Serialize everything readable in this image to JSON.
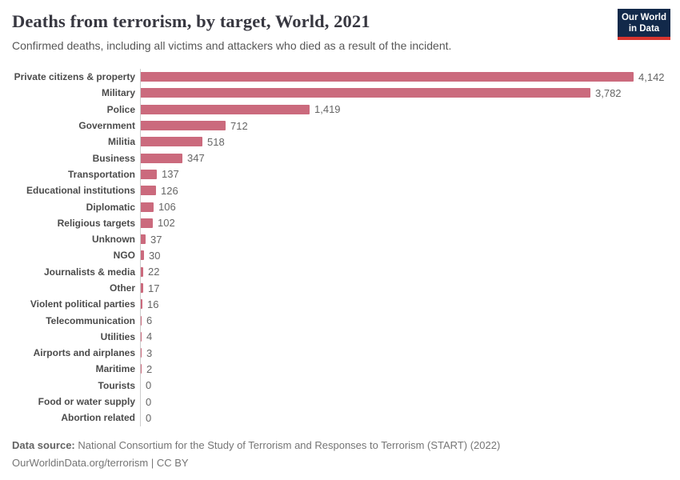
{
  "header": {
    "title": "Deaths from terrorism, by target, World, 2021",
    "subtitle": "Confirmed deaths, including all victims and attackers who died as a result of the incident.",
    "logo": {
      "line1": "Our World",
      "line2": "in Data",
      "bg_color": "#12294a",
      "accent_color": "#d8352f"
    }
  },
  "chart_data": {
    "type": "bar",
    "orientation": "horizontal",
    "title": "Deaths from terrorism, by target, World, 2021",
    "subtitle": "Confirmed deaths, including all victims and attackers who died as a result of the incident.",
    "categories": [
      "Private citizens & property",
      "Military",
      "Police",
      "Government",
      "Militia",
      "Business",
      "Transportation",
      "Educational institutions",
      "Diplomatic",
      "Religious targets",
      "Unknown",
      "NGO",
      "Journalists & media",
      "Other",
      "Violent political parties",
      "Telecommunication",
      "Utilities",
      "Airports and airplanes",
      "Maritime",
      "Tourists",
      "Food or water supply",
      "Abortion related"
    ],
    "values": [
      4142,
      3782,
      1419,
      712,
      518,
      347,
      137,
      126,
      106,
      102,
      37,
      30,
      22,
      17,
      16,
      6,
      4,
      3,
      2,
      0,
      0,
      0
    ],
    "value_labels": [
      "4,142",
      "3,782",
      "1,419",
      "712",
      "518",
      "347",
      "137",
      "126",
      "106",
      "102",
      "37",
      "30",
      "22",
      "17",
      "16",
      "6",
      "4",
      "3",
      "2",
      "0",
      "0",
      "0"
    ],
    "xlim": [
      0,
      4142
    ],
    "grid": false,
    "legend": "none",
    "bar_color": "#cb6a7d",
    "axis_color": "#cccccc"
  },
  "footer": {
    "datasource_label": "Data source:",
    "datasource_text": "National Consortium for the Study of Terrorism and Responses to Terrorism (START) (2022)",
    "license_line": "OurWorldinData.org/terrorism | CC BY"
  }
}
